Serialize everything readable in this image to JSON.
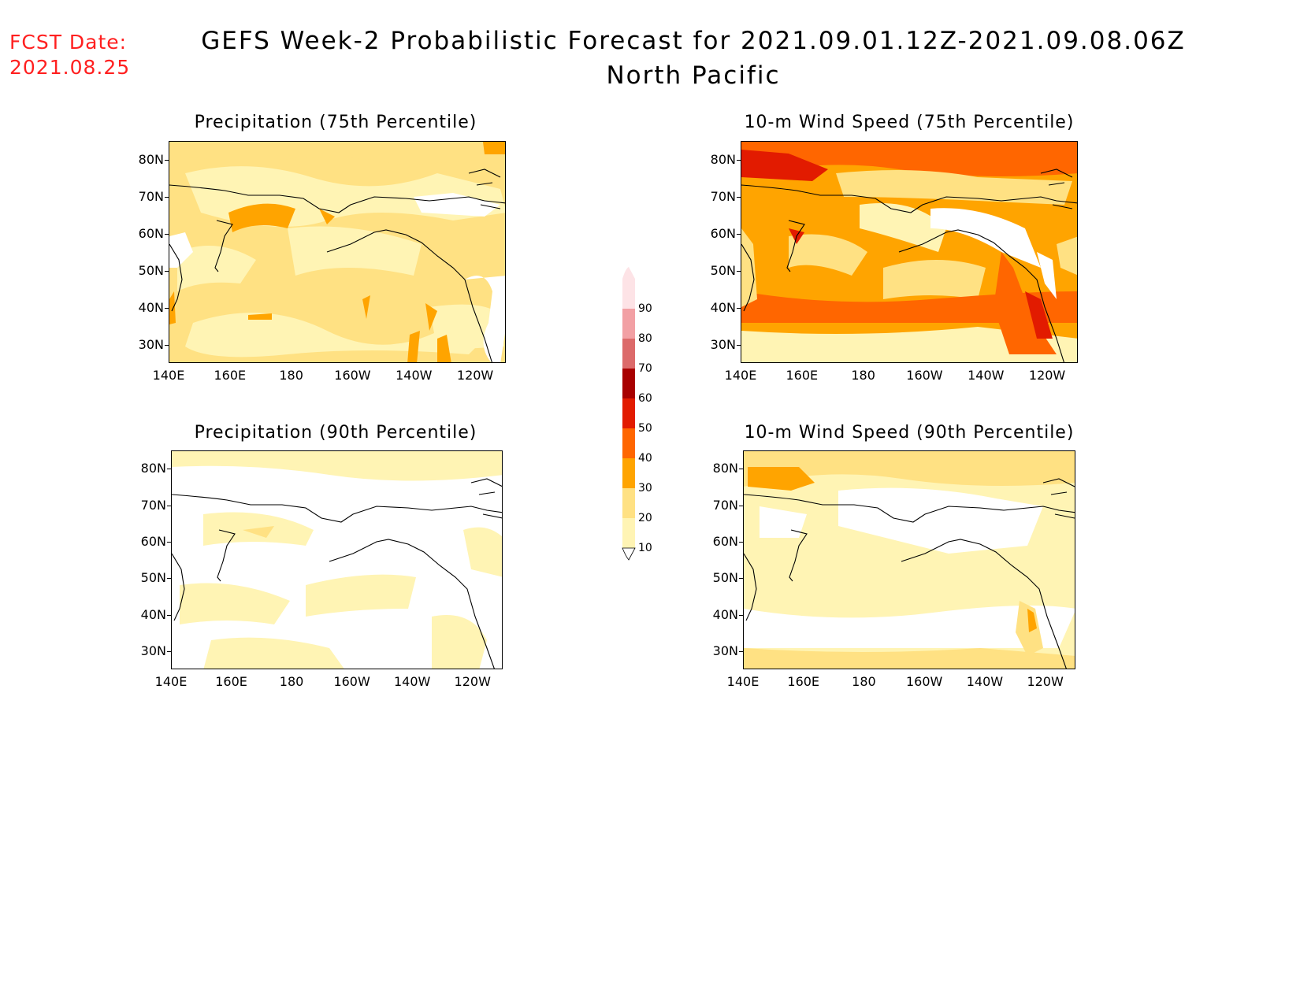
{
  "header": {
    "fcst_label": "FCST Date:",
    "fcst_date": "2021.08.25",
    "title": "GEFS Week-2 Probabilistic Forecast for 2021.09.01.12Z-2021.09.08.06Z",
    "subtitle": "North Pacific"
  },
  "axes": {
    "lat_ticks": [
      "80N",
      "70N",
      "60N",
      "50N",
      "40N",
      "30N"
    ],
    "lon_ticks": [
      "140E",
      "160E",
      "180",
      "160W",
      "140W",
      "120W"
    ]
  },
  "panels": [
    {
      "title": "Precipitation (75th Percentile)",
      "variable": "precipitation",
      "percentile": 75
    },
    {
      "title": "10-m Wind Speed (75th Percentile)",
      "variable": "wind_speed",
      "percentile": 75
    },
    {
      "title": "Precipitation (90th Percentile)",
      "variable": "precipitation",
      "percentile": 90
    },
    {
      "title": "10-m Wind Speed (90th Percentile)",
      "variable": "wind_speed",
      "percentile": 90
    }
  ],
  "colorbar": {
    "levels": [
      "10",
      "20",
      "30",
      "40",
      "50",
      "60",
      "70",
      "80",
      "90"
    ],
    "colors": [
      "#fff4b4",
      "#ffe183",
      "#ffa400",
      "#ff6600",
      "#e21b00",
      "#a80000",
      "#dc6a6a",
      "#f2a0a4",
      "#fde3e6"
    ]
  },
  "colors": {
    "fcst_text": "#ff2020",
    "coastline": "#000000"
  }
}
